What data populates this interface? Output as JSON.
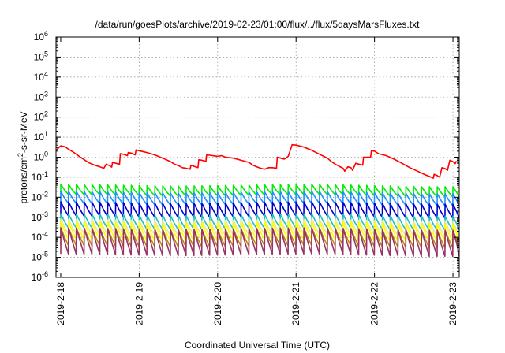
{
  "chart_data": {
    "type": "line",
    "title": "/data/run/goesPlots/archive/2019-02-23/01:00/flux/../flux/5daysMarsFluxes.txt",
    "xlabel": "Coordinated Universal Time (UTC)",
    "ylabel_main": "protons/cm",
    "ylabel_sup": "2",
    "ylabel_rest": "-s-sr-MeV",
    "x_ticks": [
      "2019-2-18",
      "2019-2-19",
      "2019-2-20",
      "2019-2-21",
      "2019-2-22",
      "2019-2-23"
    ],
    "y_scale": "log",
    "ylim": [
      1e-06,
      1000000.0
    ],
    "y_tick_exponents": [
      -6,
      -5,
      -4,
      -3,
      -2,
      -1,
      0,
      1,
      2,
      3,
      4,
      5,
      6
    ],
    "y_tick_base": "10",
    "xlim_days": [
      -0.06,
      5.08
    ],
    "grid": true,
    "legend": "none",
    "series": [
      {
        "color": "#ff0000",
        "points": [
          [
            -0.06,
            2.2
          ],
          [
            0.0,
            3.7
          ],
          [
            0.05,
            3.4
          ],
          [
            0.1,
            2.5
          ],
          [
            0.15,
            1.9
          ],
          [
            0.2,
            1.4
          ],
          [
            0.25,
            1.0
          ],
          [
            0.3,
            0.75
          ],
          [
            0.35,
            0.55
          ],
          [
            0.4,
            0.45
          ],
          [
            0.45,
            0.38
          ],
          [
            0.5,
            0.33
          ],
          [
            0.55,
            0.28
          ],
          [
            0.58,
            0.45
          ],
          [
            0.62,
            0.38
          ],
          [
            0.65,
            0.32
          ],
          [
            0.66,
            0.55
          ],
          [
            0.7,
            0.5
          ],
          [
            0.75,
            0.45
          ],
          [
            0.76,
            1.5
          ],
          [
            0.8,
            1.4
          ],
          [
            0.85,
            1.2
          ],
          [
            0.86,
            1.7
          ],
          [
            0.9,
            1.6
          ],
          [
            0.95,
            1.3
          ],
          [
            0.96,
            2.3
          ],
          [
            1.0,
            2.1
          ],
          [
            1.1,
            1.7
          ],
          [
            1.2,
            1.3
          ],
          [
            1.3,
            0.9
          ],
          [
            1.4,
            0.6
          ],
          [
            1.45,
            0.45
          ],
          [
            1.5,
            0.38
          ],
          [
            1.55,
            0.3
          ],
          [
            1.6,
            0.28
          ],
          [
            1.65,
            0.25
          ],
          [
            1.66,
            0.4
          ],
          [
            1.7,
            0.35
          ],
          [
            1.75,
            0.3
          ],
          [
            1.76,
            0.75
          ],
          [
            1.8,
            0.7
          ],
          [
            1.85,
            0.62
          ],
          [
            1.86,
            1.3
          ],
          [
            1.9,
            1.25
          ],
          [
            2.0,
            1.1
          ],
          [
            2.05,
            1.2
          ],
          [
            2.1,
            1.0
          ],
          [
            2.2,
            0.9
          ],
          [
            2.3,
            0.7
          ],
          [
            2.4,
            0.55
          ],
          [
            2.45,
            0.4
          ],
          [
            2.5,
            0.33
          ],
          [
            2.55,
            0.28
          ],
          [
            2.6,
            0.25
          ],
          [
            2.65,
            0.3
          ],
          [
            2.7,
            0.3
          ],
          [
            2.75,
            0.28
          ],
          [
            2.76,
            1.0
          ],
          [
            2.8,
            0.9
          ],
          [
            2.85,
            0.8
          ],
          [
            2.9,
            1.1
          ],
          [
            2.95,
            4.2
          ],
          [
            3.0,
            4.0
          ],
          [
            3.05,
            3.6
          ],
          [
            3.1,
            3.2
          ],
          [
            3.2,
            2.2
          ],
          [
            3.3,
            1.4
          ],
          [
            3.4,
            0.9
          ],
          [
            3.45,
            0.6
          ],
          [
            3.5,
            0.45
          ],
          [
            3.55,
            0.35
          ],
          [
            3.6,
            0.28
          ],
          [
            3.62,
            0.2
          ],
          [
            3.66,
            0.33
          ],
          [
            3.7,
            0.3
          ],
          [
            3.72,
            0.22
          ],
          [
            3.76,
            0.5
          ],
          [
            3.8,
            0.45
          ],
          [
            3.85,
            0.4
          ],
          [
            3.86,
            1.0
          ],
          [
            3.9,
            1.0
          ],
          [
            3.95,
            1.0
          ],
          [
            3.96,
            2.1
          ],
          [
            4.0,
            2.0
          ],
          [
            4.05,
            1.5
          ],
          [
            4.15,
            1.2
          ],
          [
            4.25,
            0.8
          ],
          [
            4.35,
            0.5
          ],
          [
            4.45,
            0.3
          ],
          [
            4.55,
            0.2
          ],
          [
            4.65,
            0.13
          ],
          [
            4.7,
            0.11
          ],
          [
            4.75,
            0.09
          ],
          [
            4.76,
            0.14
          ],
          [
            4.8,
            0.12
          ],
          [
            4.83,
            0.1
          ],
          [
            4.86,
            0.3
          ],
          [
            4.9,
            0.27
          ],
          [
            4.93,
            0.22
          ],
          [
            4.96,
            0.7
          ],
          [
            5.0,
            0.6
          ],
          [
            5.03,
            0.48
          ],
          [
            5.04,
            0.6
          ],
          [
            5.08,
            0.55
          ]
        ]
      },
      {
        "color": "#00ee00",
        "periods_per_day": 10,
        "peak": 0.045,
        "trough": 0.014,
        "envelope": [
          [
            0,
            1.0
          ],
          [
            1.5,
            0.8
          ],
          [
            3.2,
            1.0
          ],
          [
            4.6,
            0.75
          ],
          [
            5.08,
            0.75
          ]
        ]
      },
      {
        "color": "#1e90ff",
        "periods_per_day": 10,
        "peak": 0.02,
        "trough": 0.005,
        "envelope": [
          [
            0,
            1.0
          ],
          [
            1.5,
            0.8
          ],
          [
            3.2,
            1.0
          ],
          [
            4.6,
            0.75
          ],
          [
            5.08,
            0.75
          ]
        ]
      },
      {
        "color": "#0000cd",
        "periods_per_day": 10,
        "peak": 0.006,
        "trough": 0.0012,
        "envelope": [
          [
            0,
            1.0
          ],
          [
            1.5,
            0.8
          ],
          [
            3.2,
            1.0
          ],
          [
            4.6,
            0.75
          ],
          [
            5.08,
            0.75
          ]
        ]
      },
      {
        "color": "#20c0c0",
        "periods_per_day": 10,
        "peak": 0.0015,
        "trough": 0.0003,
        "envelope": [
          [
            0,
            1.0
          ],
          [
            1.5,
            0.8
          ],
          [
            3.2,
            1.0
          ],
          [
            4.6,
            0.75
          ],
          [
            5.08,
            0.75
          ]
        ]
      },
      {
        "color": "#f0e68c",
        "periods_per_day": 10,
        "peak": 0.0008,
        "trough": 0.00015,
        "envelope": [
          [
            0,
            1.0
          ],
          [
            1.5,
            0.8
          ],
          [
            3.2,
            1.0
          ],
          [
            4.6,
            0.75
          ],
          [
            5.08,
            0.75
          ]
        ]
      },
      {
        "color": "#ffff00",
        "periods_per_day": 10,
        "peak": 0.0006,
        "trough": 8e-05,
        "envelope": [
          [
            0,
            1.0
          ],
          [
            1.5,
            0.8
          ],
          [
            3.2,
            1.0
          ],
          [
            4.6,
            0.75
          ],
          [
            5.08,
            0.75
          ]
        ]
      },
      {
        "color": "#b8860b",
        "periods_per_day": 10,
        "peak": 0.0003,
        "trough": 4e-05,
        "envelope": [
          [
            0,
            1.0
          ],
          [
            1.5,
            0.8
          ],
          [
            3.2,
            1.0
          ],
          [
            4.6,
            0.75
          ],
          [
            5.08,
            0.75
          ]
        ]
      },
      {
        "color": "#993366",
        "periods_per_day": 10,
        "peak": 0.0003,
        "trough": 1.5e-05,
        "envelope": [
          [
            0,
            1.0
          ],
          [
            1.5,
            0.8
          ],
          [
            3.2,
            1.0
          ],
          [
            4.6,
            0.75
          ],
          [
            5.08,
            0.75
          ]
        ]
      }
    ]
  }
}
